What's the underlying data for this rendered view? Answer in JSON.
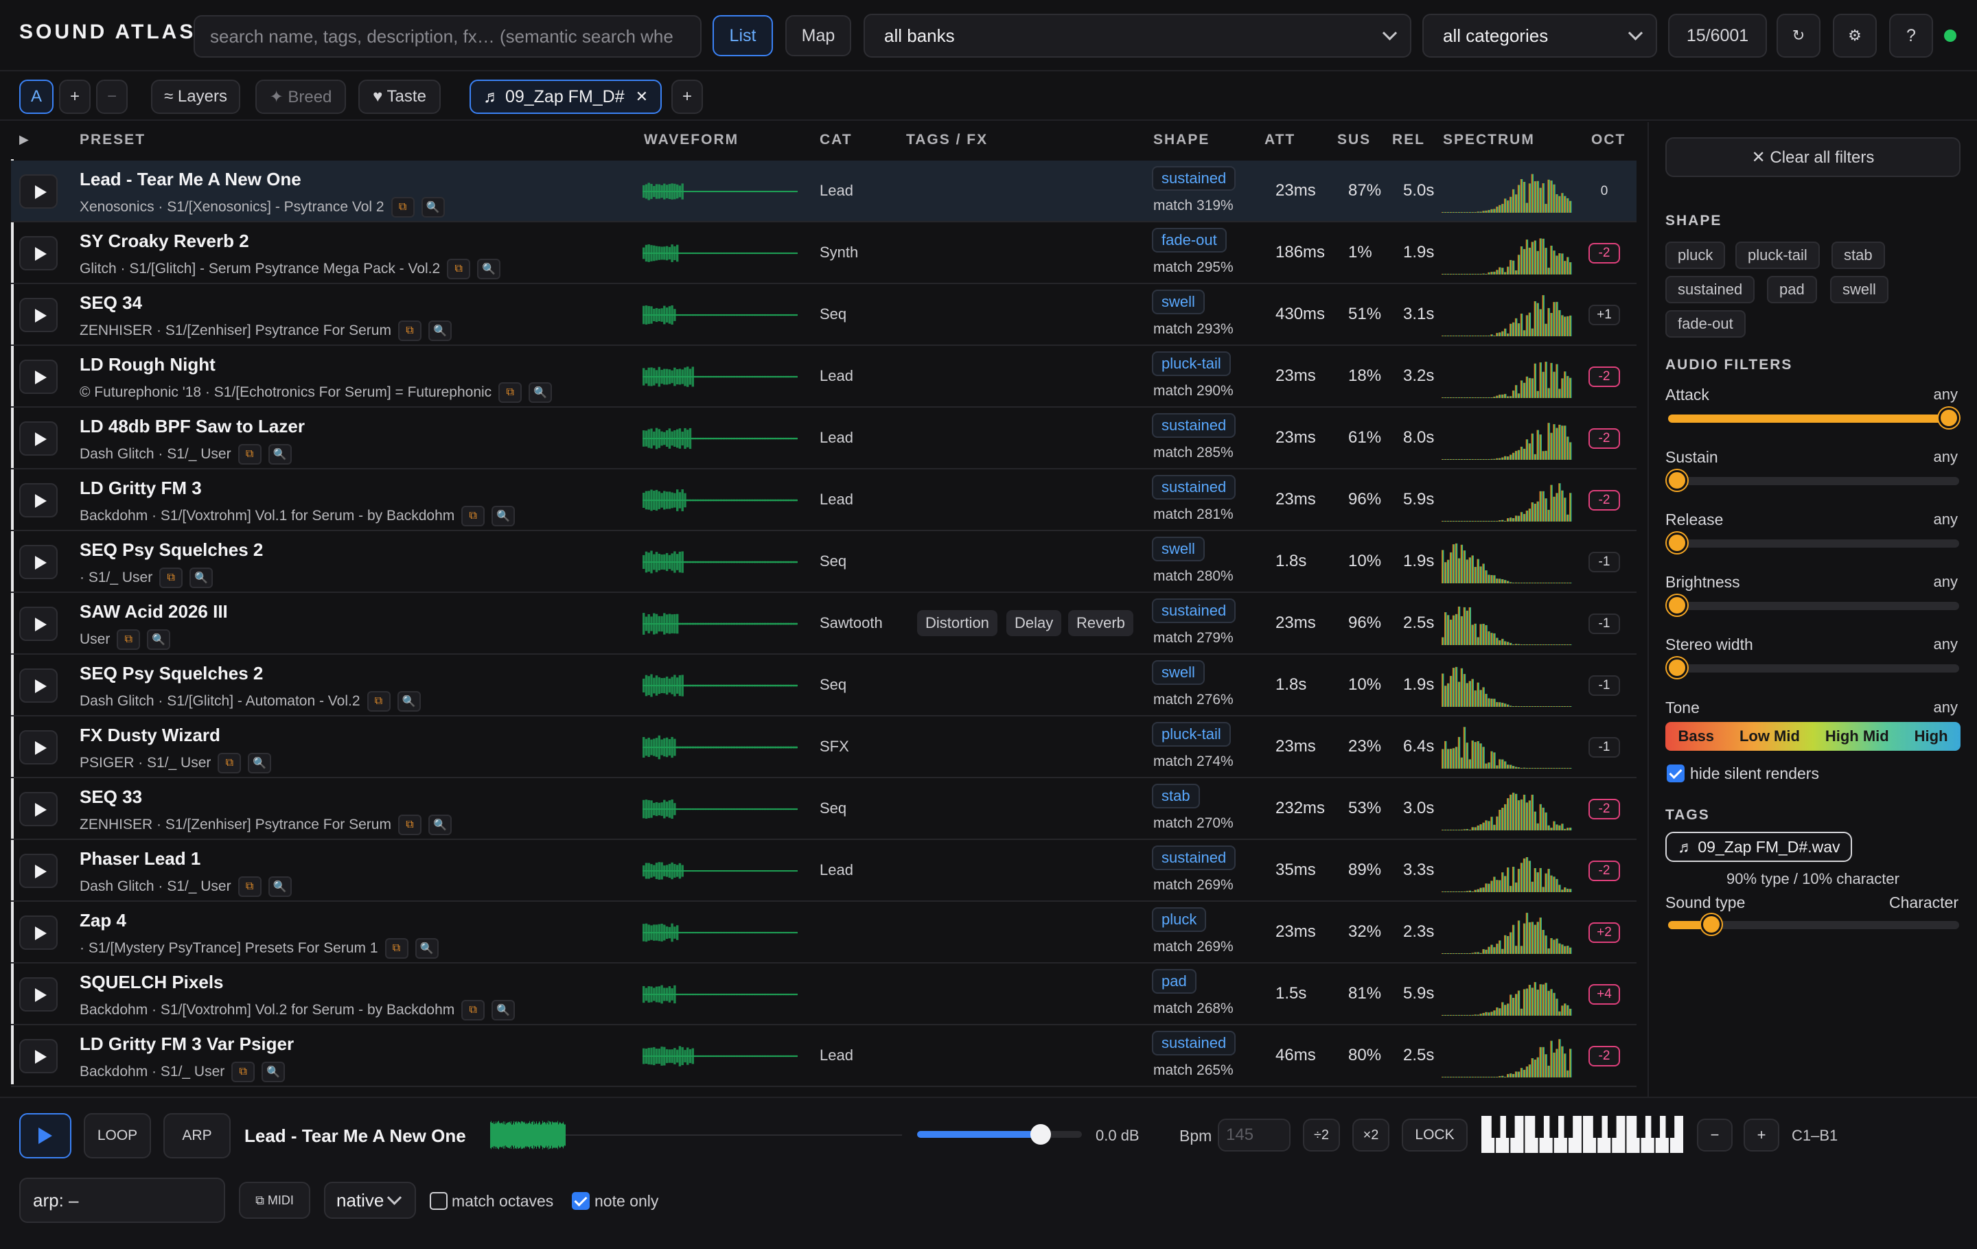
{
  "app": {
    "title": "SOUND ATLAS",
    "status_color": "#22c55e"
  },
  "topbar": {
    "search_placeholder": "search name, tags, description, fx… (semantic search whe",
    "list_label": "List",
    "map_label": "Map",
    "bank_select": "all banks",
    "category_select": "all categories",
    "count": "15/6001",
    "refresh_icon": "↻",
    "settings_icon": "⚙",
    "help_label": "?"
  },
  "toolbar2": {
    "slot_a": "A",
    "add": "+",
    "remove": "−",
    "layers": "≈ Layers",
    "breed": "✦ Breed",
    "taste": "♥ Taste",
    "active_tab": "♬ 09_Zap FM_D#",
    "tab_close": "✕",
    "add_tab": "+"
  },
  "columns": {
    "expand": "▶",
    "preset": "PRESET",
    "waveform": "WAVEFORM",
    "cat": "CAT",
    "tags": "TAGS / FX",
    "shape": "SHAPE",
    "att": "ATT",
    "sus": "SUS",
    "rel": "REL",
    "spectrum": "SPECTRUM",
    "oct": "OCT"
  },
  "rows": [
    {
      "name": "Lead - Tear Me A New One",
      "sub": "Xenosonics · S1/[Xenosonics] - Psytrance Vol 2",
      "cat": "Lead",
      "tags": [],
      "shape": "sustained",
      "match": "match 319%",
      "att": "23ms",
      "sus": "87%",
      "rel": "5.0s",
      "oct": "0",
      "wave": "w1",
      "spec": "s1"
    },
    {
      "name": "SY Croaky Reverb 2",
      "sub": "Glitch · S1/[Glitch] - Serum Psytrance Mega Pack - Vol.2",
      "cat": "Synth",
      "tags": [],
      "shape": "fade-out",
      "match": "match 295%",
      "att": "186ms",
      "sus": "1%",
      "rel": "1.9s",
      "oct": "-2",
      "wave": "w2",
      "spec": "s2"
    },
    {
      "name": "SEQ 34",
      "sub": "ZENHISER · S1/[Zenhiser] Psytrance For Serum",
      "cat": "Seq",
      "tags": [],
      "shape": "swell",
      "match": "match 293%",
      "att": "430ms",
      "sus": "51%",
      "rel": "3.1s",
      "oct": "+1",
      "wave": "w3",
      "spec": "s3"
    },
    {
      "name": "LD Rough Night",
      "sub": "© Futurephonic '18 · S1/[Echotronics For Serum] = Futurephonic",
      "cat": "Lead",
      "tags": [],
      "shape": "pluck-tail",
      "match": "match 290%",
      "att": "23ms",
      "sus": "18%",
      "rel": "3.2s",
      "oct": "-2",
      "wave": "w4",
      "spec": "s4"
    },
    {
      "name": "LD 48db BPF Saw to Lazer",
      "sub": "Dash Glitch · S1/_ User",
      "cat": "Lead",
      "tags": [],
      "shape": "sustained",
      "match": "match 285%",
      "att": "23ms",
      "sus": "61%",
      "rel": "8.0s",
      "oct": "-2",
      "wave": "w5",
      "spec": "s5"
    },
    {
      "name": "LD Gritty FM 3",
      "sub": "Backdohm · S1/[Voxtrohm] Vol.1 for Serum - by Backdohm",
      "cat": "Lead",
      "tags": [],
      "shape": "sustained",
      "match": "match 281%",
      "att": "23ms",
      "sus": "96%",
      "rel": "5.9s",
      "oct": "-2",
      "wave": "w6",
      "spec": "s6"
    },
    {
      "name": "SEQ Psy Squelches 2",
      "sub": "· S1/_ User",
      "cat": "Seq",
      "tags": [],
      "shape": "swell",
      "match": "match 280%",
      "att": "1.8s",
      "sus": "10%",
      "rel": "1.9s",
      "oct": "-1",
      "wave": "w7",
      "spec": "s7"
    },
    {
      "name": "SAW Acid 2026 III",
      "sub": "User",
      "cat": "Sawtooth",
      "tags": [
        "Distortion",
        "Delay",
        "Reverb"
      ],
      "shape": "sustained",
      "match": "match 279%",
      "att": "23ms",
      "sus": "96%",
      "rel": "2.5s",
      "oct": "-1",
      "wave": "w8",
      "spec": "s8"
    },
    {
      "name": "SEQ Psy Squelches 2",
      "sub": "Dash Glitch · S1/[Glitch] - Automaton - Vol.2",
      "cat": "Seq",
      "tags": [],
      "shape": "swell",
      "match": "match 276%",
      "att": "1.8s",
      "sus": "10%",
      "rel": "1.9s",
      "oct": "-1",
      "wave": "w7",
      "spec": "s7"
    },
    {
      "name": "FX Dusty Wizard",
      "sub": "PSIGER · S1/_ User",
      "cat": "SFX",
      "tags": [],
      "shape": "pluck-tail",
      "match": "match 274%",
      "att": "23ms",
      "sus": "23%",
      "rel": "6.4s",
      "oct": "-1",
      "wave": "w9",
      "spec": "s9"
    },
    {
      "name": "SEQ 33",
      "sub": "ZENHISER · S1/[Zenhiser] Psytrance For Serum",
      "cat": "Seq",
      "tags": [],
      "shape": "stab",
      "match": "match 270%",
      "att": "232ms",
      "sus": "53%",
      "rel": "3.0s",
      "oct": "-2",
      "wave": "w3",
      "spec": "s10"
    },
    {
      "name": "Phaser Lead 1",
      "sub": "Dash Glitch · S1/_ User",
      "cat": "Lead",
      "tags": [],
      "shape": "sustained",
      "match": "match 269%",
      "att": "35ms",
      "sus": "89%",
      "rel": "3.3s",
      "oct": "-2",
      "wave": "w10",
      "spec": "s11"
    },
    {
      "name": "Zap 4",
      "sub": "· S1/[Mystery PsyTrance] Presets For Serum 1",
      "cat": "",
      "tags": [],
      "shape": "pluck",
      "match": "match 269%",
      "att": "23ms",
      "sus": "32%",
      "rel": "2.3s",
      "oct": "+2",
      "wave": "w11",
      "spec": "s12"
    },
    {
      "name": "SQUELCH Pixels",
      "sub": "Backdohm · S1/[Voxtrohm] Vol.2 for Serum - by Backdohm",
      "cat": "",
      "tags": [],
      "shape": "pad",
      "match": "match 268%",
      "att": "1.5s",
      "sus": "81%",
      "rel": "5.9s",
      "oct": "+4",
      "wave": "w12",
      "spec": "s13"
    },
    {
      "name": "LD Gritty FM 3 Var Psiger",
      "sub": "Backdohm · S1/_ User",
      "cat": "Lead",
      "tags": [],
      "shape": "sustained",
      "match": "match 265%",
      "att": "46ms",
      "sus": "80%",
      "rel": "2.5s",
      "oct": "-2",
      "wave": "w13",
      "spec": "s6"
    }
  ],
  "panel": {
    "clear_filters": "✕ Clear all filters",
    "shape_title": "SHAPE",
    "shape_pills": [
      "pluck",
      "pluck-tail",
      "stab",
      "sustained",
      "pad",
      "swell",
      "fade-out"
    ],
    "audio_title": "AUDIO FILTERS",
    "filters": [
      {
        "label": "Attack",
        "value": "any",
        "position": 1.0,
        "fill": true
      },
      {
        "label": "Sustain",
        "value": "any",
        "position": 0.0,
        "fill": false
      },
      {
        "label": "Release",
        "value": "any",
        "position": 0.0,
        "fill": false
      },
      {
        "label": "Brightness",
        "value": "any",
        "position": 0.0,
        "fill": false
      },
      {
        "label": "Stereo width",
        "value": "any",
        "position": 0.0,
        "fill": false
      }
    ],
    "tone_label": "Tone",
    "tone_value": "any",
    "tone_bands": [
      "Bass",
      "Low Mid",
      "High Mid",
      "High"
    ],
    "hide_silent": "hide silent renders",
    "hide_silent_checked": true,
    "tags_title": "TAGS",
    "tag_file": "♬ 09_Zap FM_D#.wav",
    "mix_text": "90% type / 10% character",
    "mix_left": "Sound type",
    "mix_right": "Character",
    "mix_position": 0.1
  },
  "player": {
    "loop": "LOOP",
    "arp": "ARP",
    "now_playing": "Lead - Tear Me A New One",
    "volume_position": 0.75,
    "gain": "0.0 dB",
    "bpm_label": "Bpm",
    "bpm_placeholder": "145",
    "div2": "÷2",
    "mul2": "×2",
    "lock": "LOCK",
    "minus": "−",
    "plus": "+",
    "range": "C1–B1",
    "arp_field": "arp: –",
    "midi": "⧉ MIDI",
    "mode_select": "native",
    "match_octaves": "match octaves",
    "match_octaves_checked": false,
    "note_only": "note only",
    "note_only_checked": true
  }
}
